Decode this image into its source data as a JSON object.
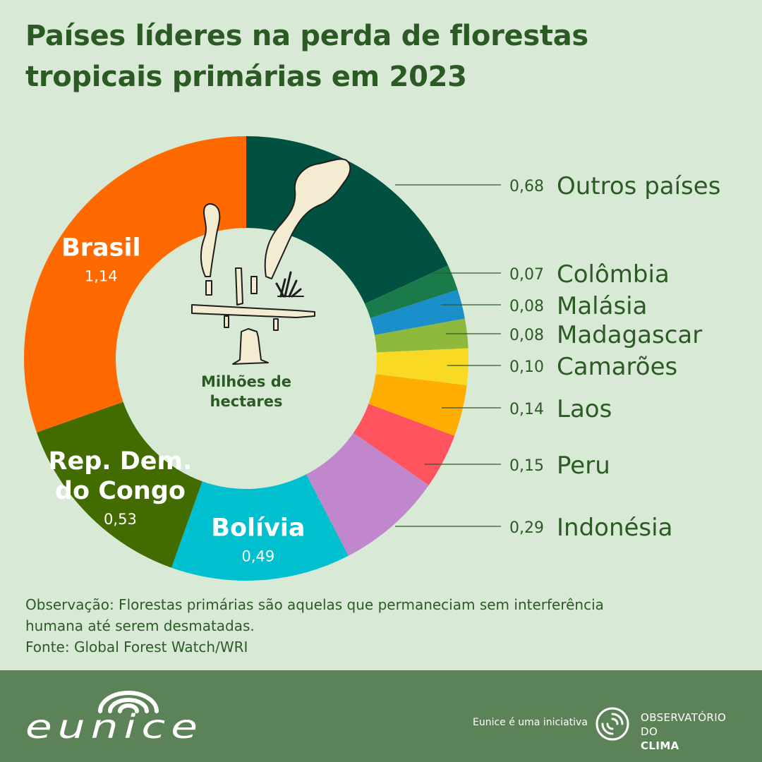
{
  "header": {
    "title_line1": "Países líderes na perda de florestas",
    "title_line2": "tropicais primárias em 2023"
  },
  "chart_data": {
    "type": "pie",
    "donut": true,
    "center_label": [
      "Milhões de",
      "hectares"
    ],
    "start": "top, clockwise",
    "slices": [
      {
        "label": "Outros países",
        "value": 0.68,
        "value_text": "0,68",
        "color": "#00513f",
        "label_place": "outside"
      },
      {
        "label": "Colômbia",
        "value": 0.07,
        "value_text": "0,07",
        "color": "#1a7a4a",
        "label_place": "outside"
      },
      {
        "label": "Malásia",
        "value": 0.08,
        "value_text": "0,08",
        "color": "#1b8fc9",
        "label_place": "outside"
      },
      {
        "label": "Madagascar",
        "value": 0.08,
        "value_text": "0,08",
        "color": "#8fb93c",
        "label_place": "outside"
      },
      {
        "label": "Camarões",
        "value": 0.1,
        "value_text": "0,10",
        "color": "#f8d924",
        "label_place": "outside"
      },
      {
        "label": "Laos",
        "value": 0.14,
        "value_text": "0,14",
        "color": "#ffad00",
        "label_place": "outside"
      },
      {
        "label": "Peru",
        "value": 0.15,
        "value_text": "0,15",
        "color": "#ff5460",
        "label_place": "outside"
      },
      {
        "label": "Indonésia",
        "value": 0.29,
        "value_text": "0,29",
        "color": "#c087cd",
        "label_place": "outside"
      },
      {
        "label": "Bolívia",
        "value": 0.49,
        "value_text": "0,49",
        "color": "#00bfcf",
        "label_place": "inside"
      },
      {
        "label": "Rep. Dem. do Congo",
        "label_lines": [
          "Rep. Dem.",
          "do Congo"
        ],
        "value": 0.53,
        "value_text": "0,53",
        "color": "#426b00",
        "label_place": "inside"
      },
      {
        "label": "Brasil",
        "value": 1.14,
        "value_text": "1,14",
        "color": "#ff6a00",
        "label_place": "inside"
      }
    ]
  },
  "note": {
    "line1": "Observação: Florestas primárias são aquelas que permaneciam sem interferência",
    "line2": "humana até serem desmatadas.",
    "source": "Fonte: Global Forest Watch/WRI"
  },
  "footer": {
    "logo_text": "eunice",
    "initiative_text": "Eunice é uma iniciativa",
    "partner_line1": "OBSERVATÓRIO",
    "partner_line2_a": "DO ",
    "partner_line2_b": "CLIMA"
  },
  "colors": {
    "background": "#d8ead6",
    "title": "#2c5a25",
    "footer": "#5c8257"
  }
}
